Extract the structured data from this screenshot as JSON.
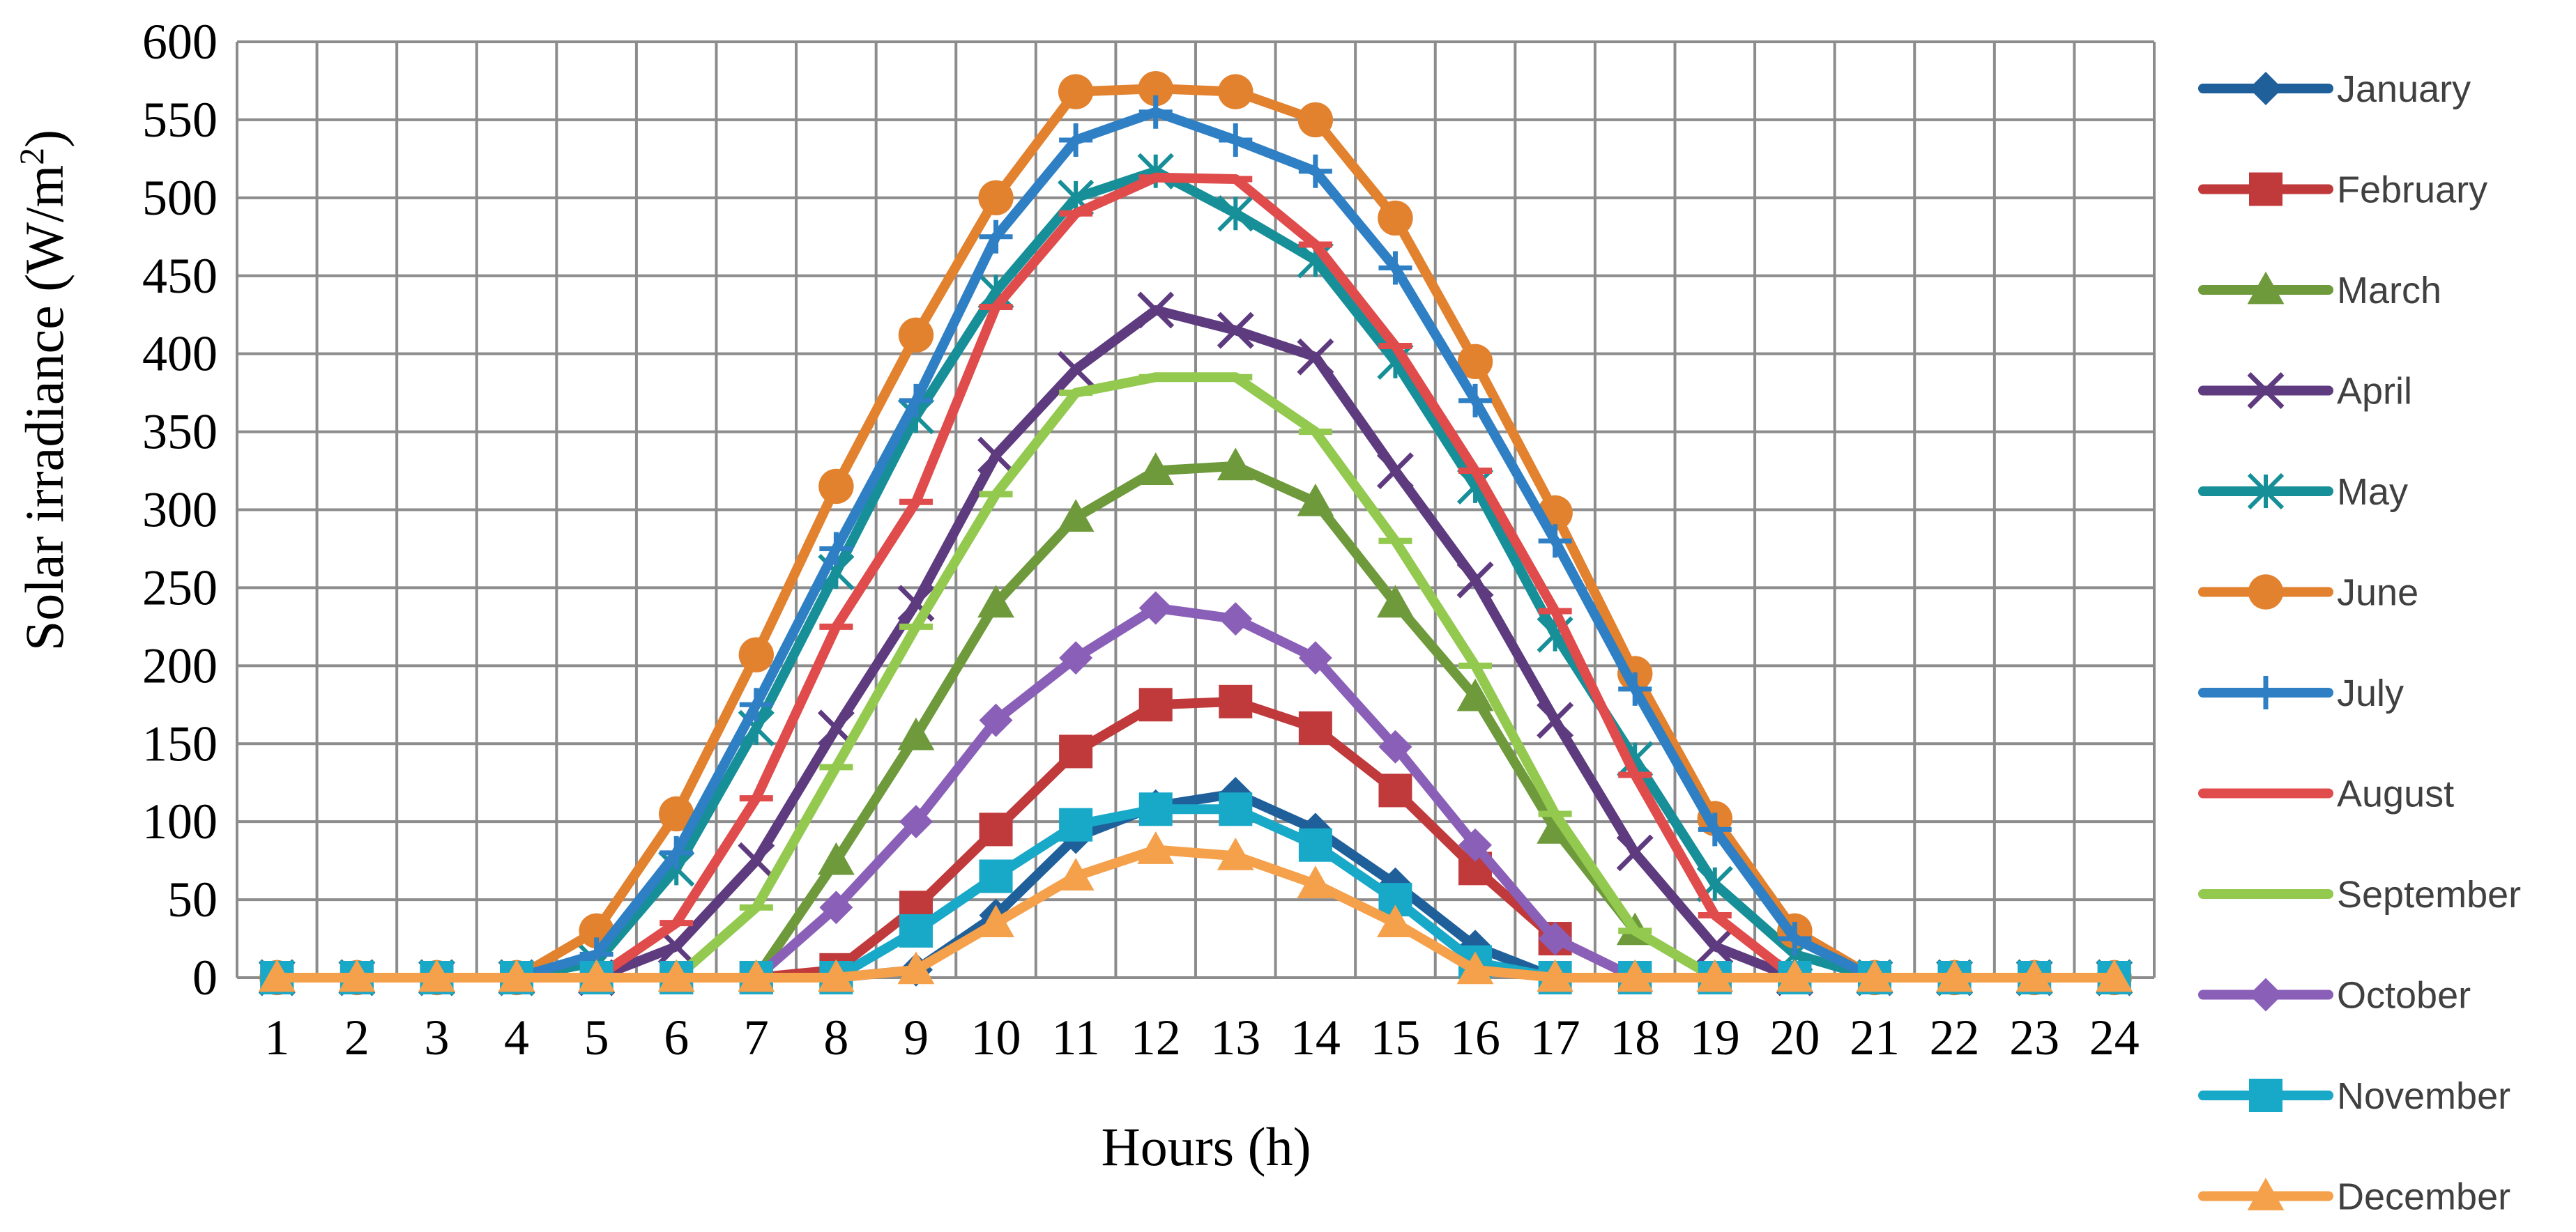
{
  "chart_data": {
    "type": "line",
    "title": "",
    "xlabel": "Hours (h)",
    "ylabel": "Solar irradiance (W/m",
    "ylabel_sup": "2",
    "ylabel_end": ")",
    "xlim": [
      0.5,
      24.5
    ],
    "ylim": [
      0,
      600
    ],
    "grid": true,
    "legend_position": "right",
    "categories": [
      "1",
      "2",
      "3",
      "4",
      "5",
      "6",
      "7",
      "8",
      "9",
      "10",
      "11",
      "12",
      "13",
      "14",
      "15",
      "16",
      "17",
      "18",
      "19",
      "20",
      "21",
      "22",
      "23",
      "24"
    ],
    "y_ticks": [
      "0",
      "50",
      "100",
      "150",
      "200",
      "250",
      "300",
      "350",
      "400",
      "450",
      "500",
      "550",
      "600"
    ],
    "series": [
      {
        "name": "January",
        "color": "#1f5f9a",
        "marker": "diamond",
        "values": [
          0,
          0,
          0,
          0,
          0,
          0,
          0,
          0,
          5,
          40,
          90,
          110,
          118,
          95,
          60,
          20,
          0,
          0,
          0,
          0,
          0,
          0,
          0,
          0
        ]
      },
      {
        "name": "February",
        "color": "#c0393b",
        "marker": "square",
        "values": [
          0,
          0,
          0,
          0,
          0,
          0,
          0,
          5,
          45,
          95,
          145,
          175,
          177,
          160,
          120,
          70,
          25,
          0,
          0,
          0,
          0,
          0,
          0,
          0
        ]
      },
      {
        "name": "March",
        "color": "#6e9a3c",
        "marker": "triangle",
        "values": [
          0,
          0,
          0,
          0,
          0,
          0,
          0,
          75,
          155,
          240,
          295,
          325,
          328,
          305,
          240,
          180,
          95,
          30,
          0,
          0,
          0,
          0,
          0,
          0
        ]
      },
      {
        "name": "April",
        "color": "#5e3a7f",
        "marker": "x",
        "values": [
          0,
          0,
          0,
          0,
          0,
          20,
          75,
          160,
          240,
          335,
          390,
          428,
          415,
          398,
          325,
          255,
          165,
          80,
          20,
          0,
          0,
          0,
          0,
          0
        ]
      },
      {
        "name": "May",
        "color": "#178f98",
        "marker": "asterisk",
        "values": [
          0,
          0,
          0,
          0,
          10,
          70,
          160,
          260,
          360,
          440,
          500,
          517,
          490,
          460,
          395,
          315,
          220,
          140,
          60,
          15,
          0,
          0,
          0,
          0
        ]
      },
      {
        "name": "June",
        "color": "#e2812e",
        "marker": "circle",
        "values": [
          0,
          0,
          0,
          0,
          30,
          105,
          207,
          315,
          412,
          500,
          568,
          570,
          568,
          550,
          487,
          395,
          298,
          195,
          102,
          30,
          0,
          0,
          0,
          0
        ]
      },
      {
        "name": "July",
        "color": "#2e7fc4",
        "marker": "plus",
        "values": [
          0,
          0,
          0,
          0,
          15,
          80,
          175,
          275,
          370,
          475,
          537,
          555,
          537,
          517,
          455,
          370,
          280,
          185,
          95,
          25,
          0,
          0,
          0,
          0
        ]
      },
      {
        "name": "August",
        "color": "#e04b4b",
        "marker": "dash",
        "values": [
          0,
          0,
          0,
          0,
          0,
          35,
          115,
          225,
          305,
          430,
          490,
          513,
          512,
          470,
          405,
          325,
          235,
          130,
          40,
          0,
          0,
          0,
          0,
          0
        ]
      },
      {
        "name": "September",
        "color": "#92c94e",
        "marker": "dash",
        "values": [
          0,
          0,
          0,
          0,
          0,
          0,
          45,
          135,
          225,
          310,
          375,
          385,
          385,
          350,
          280,
          200,
          105,
          30,
          0,
          0,
          0,
          0,
          0,
          0
        ]
      },
      {
        "name": "October",
        "color": "#8a5fb8",
        "marker": "diamond",
        "values": [
          0,
          0,
          0,
          0,
          0,
          0,
          0,
          45,
          100,
          165,
          205,
          237,
          230,
          205,
          148,
          85,
          25,
          0,
          0,
          0,
          0,
          0,
          0,
          0
        ]
      },
      {
        "name": "November",
        "color": "#18a8c8",
        "marker": "square",
        "values": [
          0,
          0,
          0,
          0,
          0,
          0,
          0,
          0,
          30,
          65,
          98,
          108,
          108,
          85,
          50,
          10,
          0,
          0,
          0,
          0,
          0,
          0,
          0,
          0
        ]
      },
      {
        "name": "December",
        "color": "#f5a04a",
        "marker": "triangle",
        "values": [
          0,
          0,
          0,
          0,
          0,
          0,
          0,
          0,
          5,
          35,
          65,
          82,
          78,
          60,
          35,
          5,
          0,
          0,
          0,
          0,
          0,
          0,
          0,
          0
        ]
      }
    ]
  }
}
